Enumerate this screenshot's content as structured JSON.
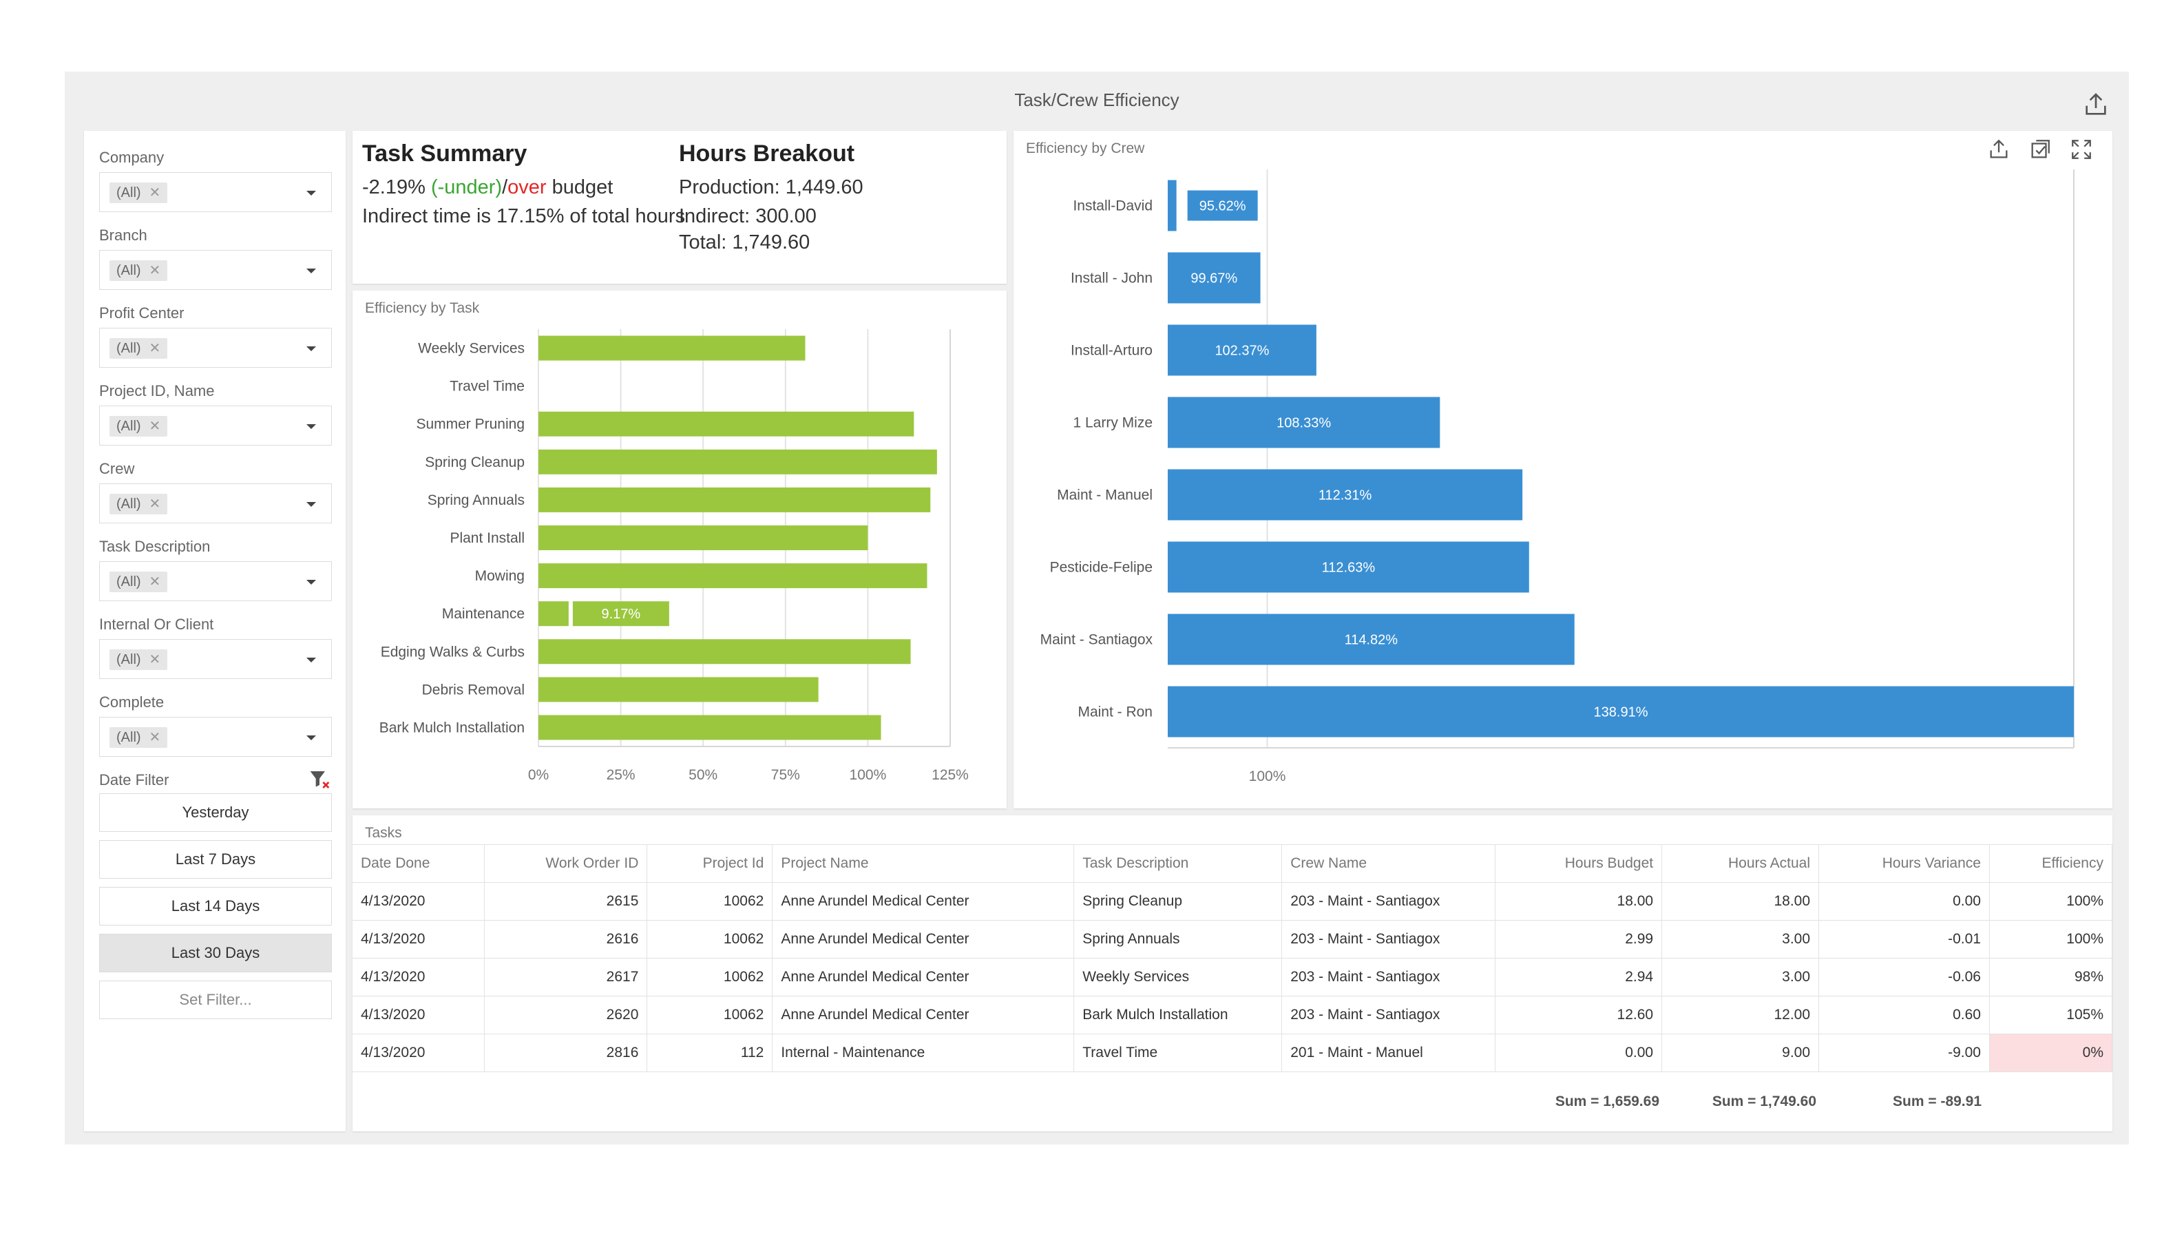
{
  "title": "Task/Crew Efficiency",
  "filters": [
    {
      "label": "Company",
      "value": "(All)"
    },
    {
      "label": "Branch",
      "value": "(All)"
    },
    {
      "label": "Profit Center",
      "value": "(All)"
    },
    {
      "label": "Project ID, Name",
      "value": "(All)"
    },
    {
      "label": "Crew",
      "value": "(All)"
    },
    {
      "label": "Task Description",
      "value": "(All)"
    },
    {
      "label": "Internal Or Client",
      "value": "(All)"
    },
    {
      "label": "Complete",
      "value": "(All)"
    }
  ],
  "date_filter": {
    "label": "Date Filter",
    "options": [
      "Yesterday",
      "Last 7 Days",
      "Last 14 Days",
      "Last 30 Days"
    ],
    "active": "Last 30 Days",
    "set_filter": "Set Filter..."
  },
  "task_summary": {
    "title": "Task Summary",
    "pct": "-2.19%",
    "under": "(-under)",
    "slash": "/",
    "over": "over",
    "budget": "budget",
    "indirect_line": "Indirect time is 17.15% of total hours"
  },
  "hours_breakout": {
    "title": "Hours Breakout",
    "production": "Production: 1,449.60",
    "indirect": "Indirect: 300.00",
    "total": "Total: 1,749.60"
  },
  "chart_data": [
    {
      "type": "bar",
      "orientation": "horizontal",
      "title": "Efficiency by Task",
      "categories": [
        "Weekly Services",
        "Travel Time",
        "Summer Pruning",
        "Spring Cleanup",
        "Spring Annuals",
        "Plant Install",
        "Mowing",
        "Maintenance",
        "Edging Walks & Curbs",
        "Debris Removal",
        "Bark Mulch Installation"
      ],
      "values": [
        81,
        0,
        114,
        121,
        119,
        100,
        118,
        9.17,
        113,
        85,
        104
      ],
      "data_labels": {
        "Maintenance": "9.17%"
      },
      "xticks": [
        "0%",
        "25%",
        "50%",
        "75%",
        "100%",
        "125%"
      ],
      "xlim": [
        0,
        125
      ],
      "grid": true,
      "color": "#9bc73f"
    },
    {
      "type": "bar",
      "orientation": "horizontal",
      "title": "Efficiency by Crew",
      "categories": [
        "Install-David",
        "Install - John",
        "Install-Arturo",
        "1 Larry Mize",
        "Maint - Manuel",
        "Pesticide-Felipe",
        "Maint - Santiagox",
        "Maint - Ron"
      ],
      "values": [
        95.62,
        99.67,
        102.37,
        108.33,
        112.31,
        112.63,
        114.82,
        138.91
      ],
      "labels": [
        "95.62%",
        "99.67%",
        "102.37%",
        "108.33%",
        "112.31%",
        "112.63%",
        "114.82%",
        "138.91%"
      ],
      "xticks": [
        "100%"
      ],
      "xlim": [
        95.2,
        138.91
      ],
      "grid": true,
      "color": "#3a8fd3"
    }
  ],
  "tasks": {
    "title": "Tasks",
    "columns": [
      "Date Done",
      "Work Order ID",
      "Project Id",
      "Project Name",
      "Task Description",
      "Crew Name",
      "Hours Budget",
      "Hours Actual",
      "Hours Variance",
      "Efficiency"
    ],
    "rows": [
      [
        "4/13/2020",
        "2615",
        "10062",
        "Anne Arundel Medical Center",
        "Spring Cleanup",
        "203 - Maint - Santiagox",
        "18.00",
        "18.00",
        "0.00",
        "100%"
      ],
      [
        "4/13/2020",
        "2616",
        "10062",
        "Anne Arundel Medical Center",
        "Spring Annuals",
        "203 - Maint - Santiagox",
        "2.99",
        "3.00",
        "-0.01",
        "100%"
      ],
      [
        "4/13/2020",
        "2617",
        "10062",
        "Anne Arundel Medical Center",
        "Weekly Services",
        "203 - Maint - Santiagox",
        "2.94",
        "3.00",
        "-0.06",
        "98%"
      ],
      [
        "4/13/2020",
        "2620",
        "10062",
        "Anne Arundel Medical Center",
        "Bark Mulch Installation",
        "203 - Maint - Santiagox",
        "12.60",
        "12.00",
        "0.60",
        "105%"
      ],
      [
        "4/13/2020",
        "2816",
        "112",
        "Internal - Maintenance",
        "Travel Time",
        "201 - Maint - Manuel",
        "0.00",
        "9.00",
        "-9.00",
        "0%"
      ]
    ],
    "sums": {
      "budget": "Sum = 1,659.69",
      "actual": "Sum = 1,749.60",
      "variance": "Sum = -89.91"
    }
  }
}
